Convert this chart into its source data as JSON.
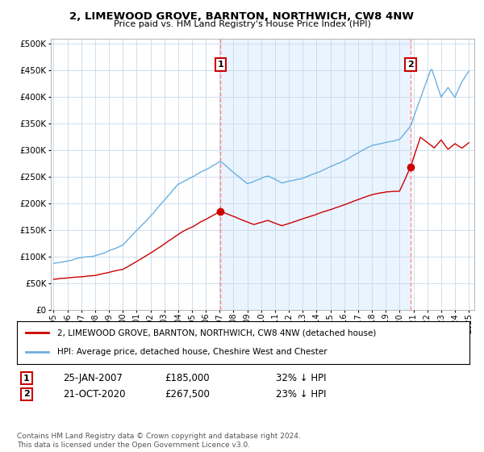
{
  "title_line1": "2, LIMEWOOD GROVE, BARNTON, NORTHWICH, CW8 4NW",
  "title_line2": "Price paid vs. HM Land Registry's House Price Index (HPI)",
  "legend_label1": "2, LIMEWOOD GROVE, BARNTON, NORTHWICH, CW8 4NW (detached house)",
  "legend_label2": "HPI: Average price, detached house, Cheshire West and Chester",
  "transaction1_date": "25-JAN-2007",
  "transaction1_price": "£185,000",
  "transaction1_hpi": "32% ↓ HPI",
  "transaction2_date": "21-OCT-2020",
  "transaction2_price": "£267,500",
  "transaction2_hpi": "23% ↓ HPI",
  "footnote": "Contains HM Land Registry data © Crown copyright and database right 2024.\nThis data is licensed under the Open Government Licence v3.0.",
  "hpi_color": "#6ab0e0",
  "hpi_fill_color": "#ddeeff",
  "price_color": "#cc0000",
  "marker_color": "#cc0000",
  "vline_color": "#ff8888",
  "background_color": "#ffffff",
  "grid_color": "#c8d8e8",
  "transaction1_year": 2007.05,
  "transaction2_year": 2020.8,
  "t1_price": 185000,
  "t2_price": 267500
}
